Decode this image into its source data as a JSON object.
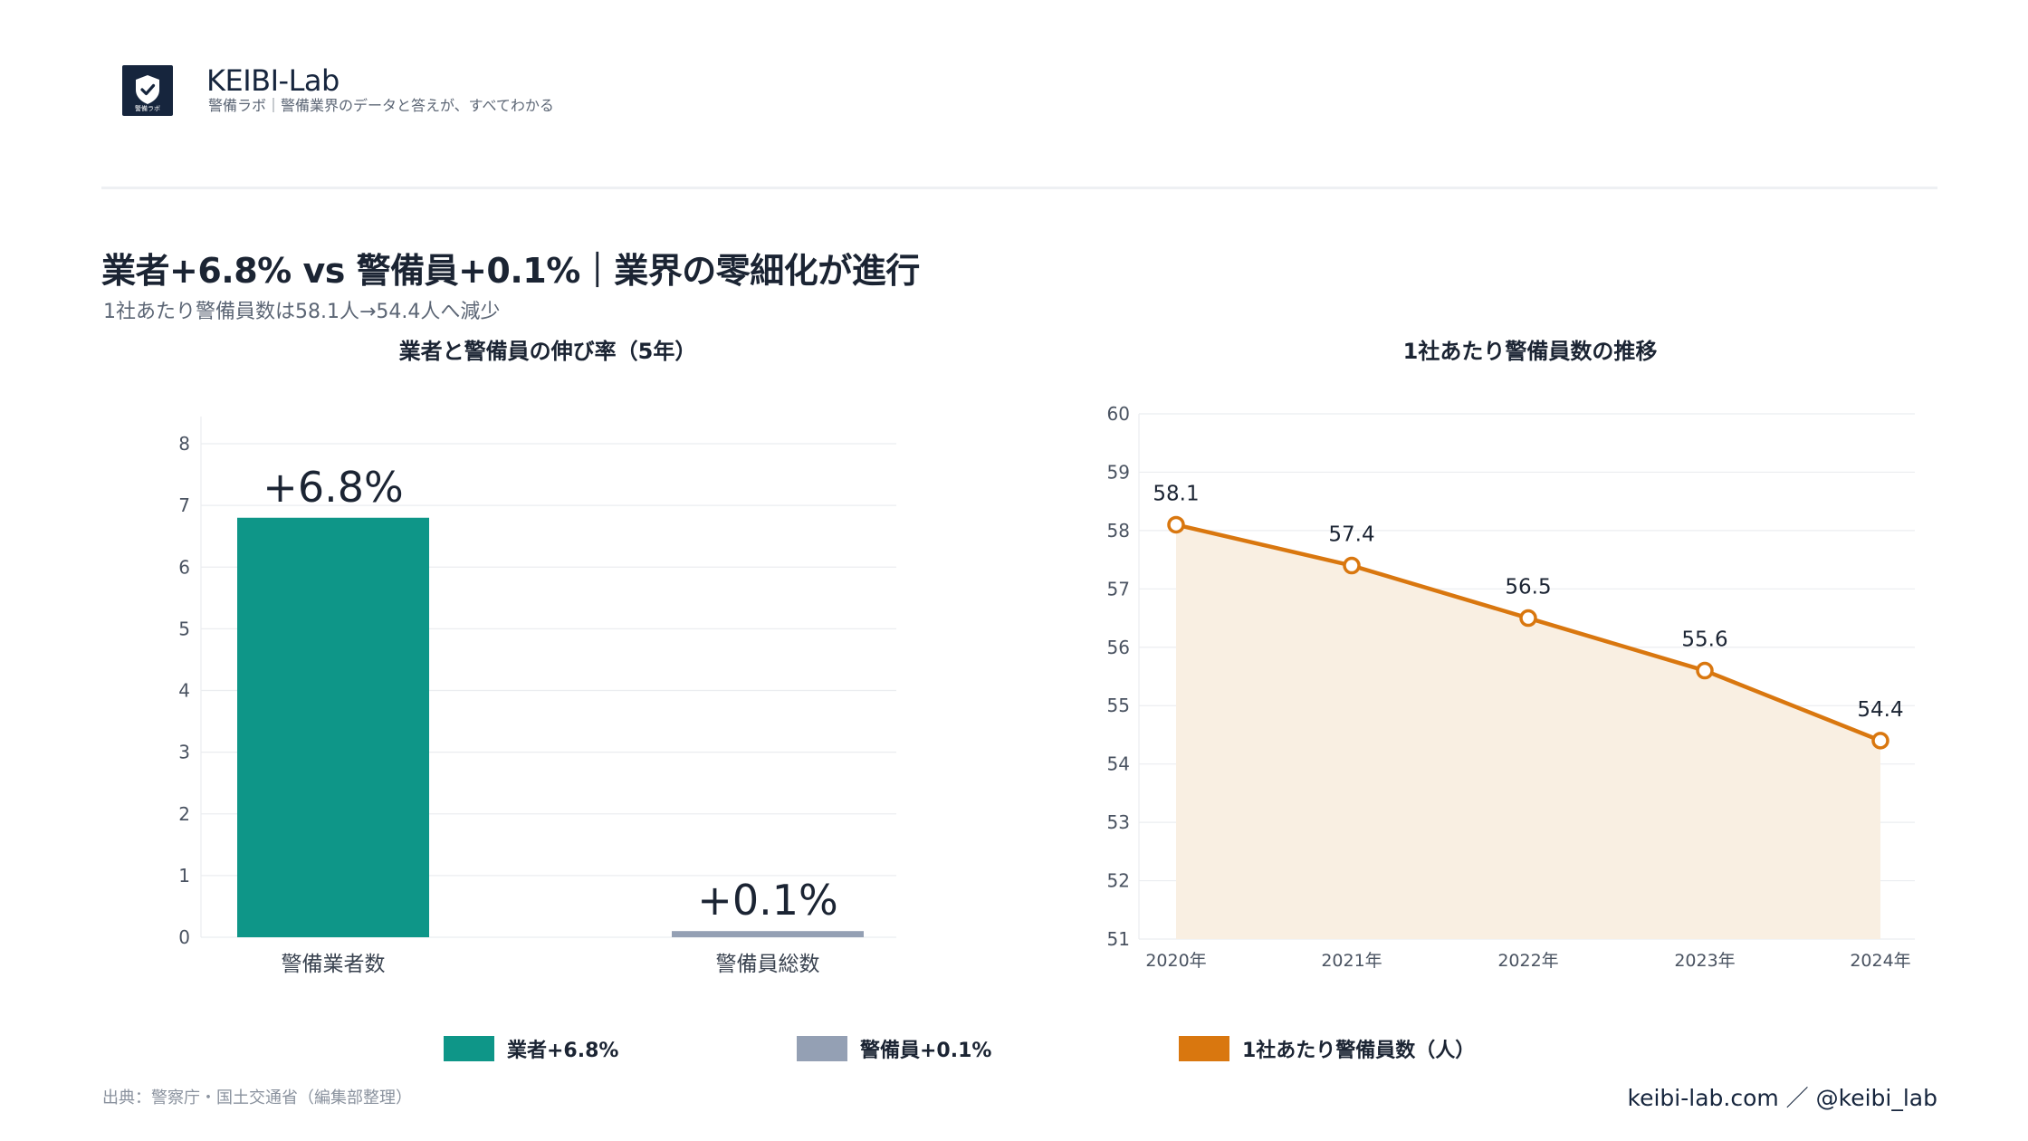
{
  "brand": {
    "name": "KEIBI-Lab",
    "tagline": "警備ラボ｜警備業界のデータと答えが、すべてわかる",
    "logo_caption": "警備ラボ",
    "logo_icon": "shield-check-icon",
    "colors": {
      "navy": "#16253d"
    }
  },
  "headline": "業者+6.8% vs 警備員+0.1%｜業界の零細化が進行",
  "subheadline": "1社あたり警備員数は58.1人→54.4人へ減少",
  "chart_data": [
    {
      "type": "bar",
      "title": "業者と警備員の伸び率（5年）",
      "categories": [
        "警備業者数",
        "警備員総数"
      ],
      "values": [
        6.8,
        0.1
      ],
      "value_labels": [
        "+6.8%",
        "+0.1%"
      ],
      "colors": [
        "#0e9688",
        "#94a0b4"
      ],
      "ylim": [
        0,
        8
      ],
      "yticks": [
        0,
        1,
        2,
        3,
        4,
        5,
        6,
        7,
        8
      ],
      "grid": true
    },
    {
      "type": "line",
      "title": "1社あたり警備員数の推移",
      "x": [
        "2020年",
        "2021年",
        "2022年",
        "2023年",
        "2024年"
      ],
      "values": [
        58.1,
        57.4,
        56.5,
        55.6,
        54.4
      ],
      "value_labels": [
        "58.1",
        "57.4",
        "56.5",
        "55.6",
        "54.4"
      ],
      "color": "#d9770f",
      "fill_color": "#f9efe2",
      "ylim": [
        51,
        60
      ],
      "yticks": [
        51,
        52,
        53,
        54,
        55,
        56,
        57,
        58,
        59,
        60
      ],
      "grid": true,
      "area_fill": true
    }
  ],
  "legend": [
    {
      "label": "業者+6.8%",
      "color": "#0e9688"
    },
    {
      "label": "警備員+0.1%",
      "color": "#94a0b4"
    },
    {
      "label": "1社あたり警備員数（人）",
      "color": "#d9770f"
    }
  ],
  "footer": {
    "source": "出典：警察庁・国土交通省（編集部整理）",
    "site": "keibi-lab.com ／ @keibi_lab"
  }
}
